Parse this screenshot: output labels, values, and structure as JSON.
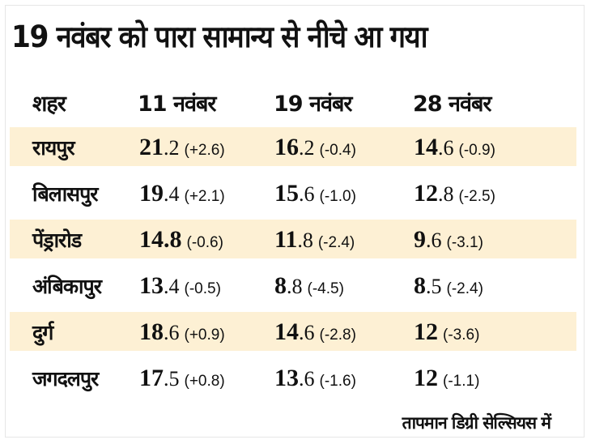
{
  "title": "19 नवंबर को पारा सामान्य से नीचे आ गया",
  "headers": [
    "शहर",
    "11 नवंबर",
    "19 नवंबर",
    "28 नवंबर"
  ],
  "rows": [
    {
      "city": "रायपुर",
      "cells": [
        {
          "int": "21",
          "dec": ".2",
          "delta": "(+2.6)"
        },
        {
          "int": "16",
          "dec": ".2",
          "delta": "(-0.4)"
        },
        {
          "int": "14",
          "dec": ".6",
          "delta": "(-0.9)"
        }
      ]
    },
    {
      "city": "बिलासपुर",
      "cells": [
        {
          "int": "19",
          "dec": ".4",
          "delta": "(+2.1)"
        },
        {
          "int": "15",
          "dec": ".6",
          "delta": "(-1.0)"
        },
        {
          "int": "12",
          "dec": ".8",
          "delta": "(-2.5)"
        }
      ]
    },
    {
      "city": "पेंड्रारोड",
      "cells": [
        {
          "int": "14.8",
          "dec": "",
          "delta": "(-0.6)"
        },
        {
          "int": "11",
          "dec": ".8",
          "delta": "(-2.4)"
        },
        {
          "int": "9",
          "dec": ".6",
          "delta": "(-3.1)"
        }
      ]
    },
    {
      "city": "अंबिकापुर",
      "cells": [
        {
          "int": "13",
          "dec": ".4",
          "delta": "(-0.5)"
        },
        {
          "int": "8",
          "dec": ".8",
          "delta": "(-4.5)"
        },
        {
          "int": "8",
          "dec": ".5",
          "delta": "(-2.4)"
        }
      ]
    },
    {
      "city": "दुर्ग",
      "cells": [
        {
          "int": "18",
          "dec": ".6",
          "delta": "(+0.9)"
        },
        {
          "int": "14",
          "dec": ".6",
          "delta": "(-2.8)"
        },
        {
          "int": "12",
          "dec": "",
          "delta": "(-3.6)"
        }
      ]
    },
    {
      "city": "जगदलपुर",
      "cells": [
        {
          "int": "17",
          "dec": ".5",
          "delta": "(+0.8)"
        },
        {
          "int": "13",
          "dec": ".6",
          "delta": "(-1.6)"
        },
        {
          "int": "12",
          "dec": "",
          "delta": "(-1.1)"
        }
      ]
    }
  ],
  "footnote": "तापमान डिग्री सेल्सियस में",
  "colors": {
    "highlight": "#fdf0d4"
  }
}
